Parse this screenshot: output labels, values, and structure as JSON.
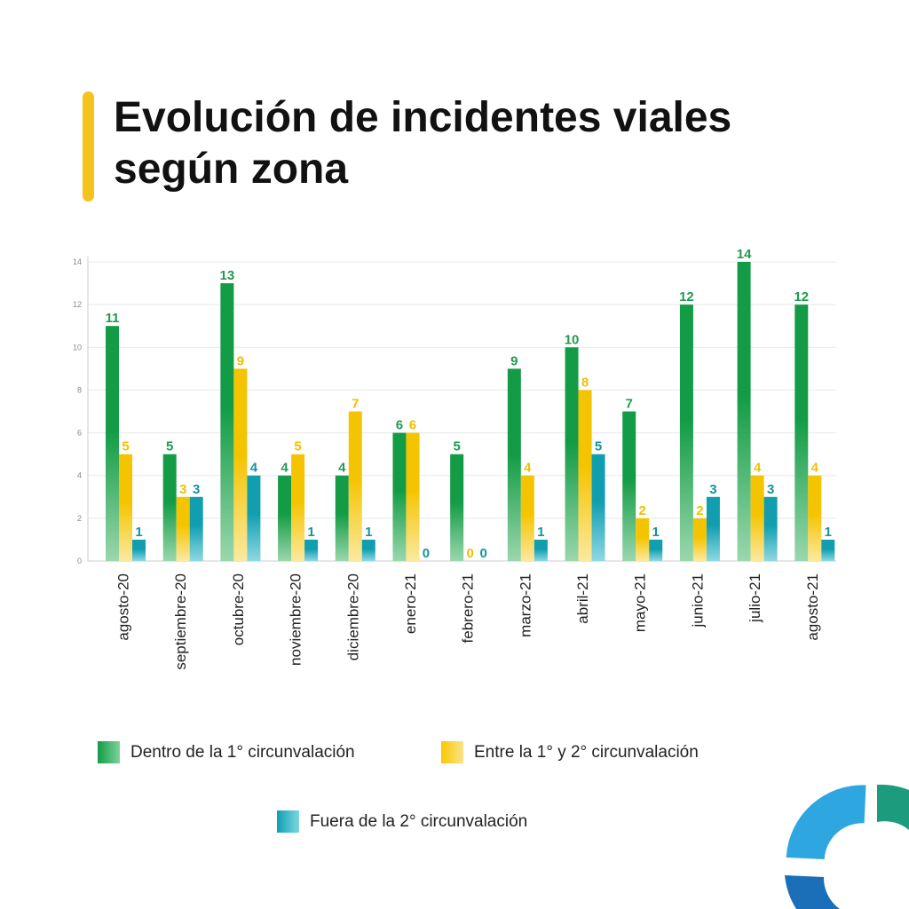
{
  "title_lines": [
    "Evolución de incidentes viales",
    "según zona"
  ],
  "chart_data": {
    "type": "bar",
    "title": "Evolución de incidentes viales según zona",
    "categories": [
      "agosto-20",
      "septiembre-20",
      "octubre-20",
      "noviembre-20",
      "diciembre-20",
      "enero-21",
      "febrero-21",
      "marzo-21",
      "abril-21",
      "mayo-21",
      "junio-21",
      "julio-21",
      "agosto-21"
    ],
    "series": [
      {
        "name": "Dentro de la 1° circunvalación",
        "color": "#139c45",
        "values": [
          11,
          5,
          13,
          4,
          4,
          6,
          5,
          9,
          10,
          7,
          12,
          14,
          12
        ]
      },
      {
        "name": "Entre la 1° y 2° circunvalación",
        "color": "#f5c400",
        "values": [
          5,
          3,
          9,
          5,
          7,
          6,
          0,
          4,
          8,
          2,
          2,
          4,
          4
        ]
      },
      {
        "name": "Fuera de la 2° circunvalación",
        "color": "#119fb0",
        "values": [
          1,
          3,
          4,
          1,
          1,
          0,
          0,
          1,
          5,
          1,
          3,
          3,
          1
        ]
      }
    ],
    "ylim": [
      0,
      14
    ],
    "yticks": [
      0,
      2,
      4,
      6,
      8,
      10,
      12,
      14
    ],
    "grid": true,
    "legend_position": "bottom"
  },
  "legend": {
    "items": [
      {
        "label": "Dentro de la 1° circunvalación"
      },
      {
        "label": "Entre la 1° y 2° circunvalación"
      },
      {
        "label": "Fuera de la 2° circunvalación"
      }
    ]
  },
  "colors": {
    "accent": "#f6c31c",
    "logo_blue": "#2ea6e0",
    "logo_dark_blue": "#1a6fb8",
    "logo_green": "#1c9c7c"
  }
}
